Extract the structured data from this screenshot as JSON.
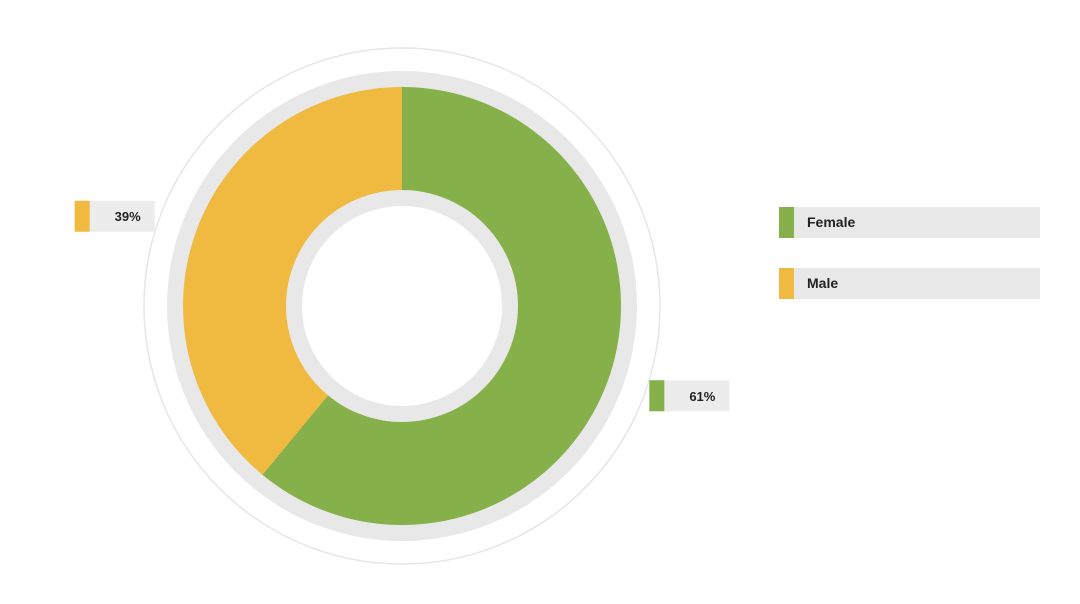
{
  "chart_data": {
    "type": "pie",
    "donut": true,
    "title": "",
    "legend_position": "right",
    "series": [
      {
        "name": "Female",
        "value": 61,
        "label": "61%",
        "color": "#86b04a"
      },
      {
        "name": "Male",
        "value": 39,
        "label": "39%",
        "color": "#f0b940"
      }
    ]
  },
  "colors": {
    "ring_gray": "#e8e8e8",
    "outer_outline": "#e6e6e6"
  }
}
